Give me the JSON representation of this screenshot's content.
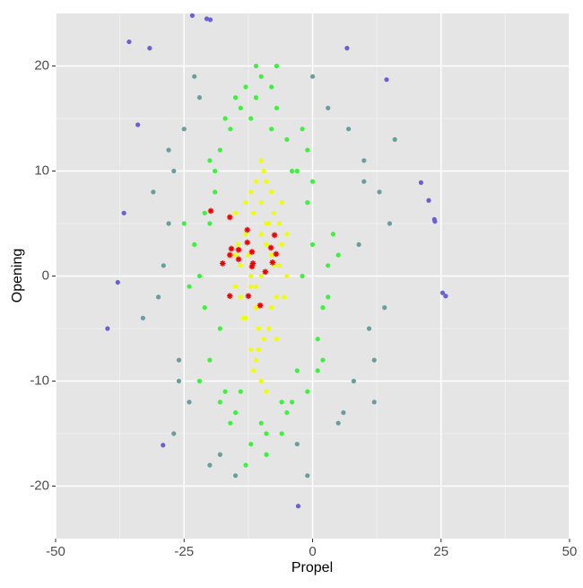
{
  "chart_data": {
    "type": "scatter",
    "xlabel": "Propel",
    "ylabel": "Opening",
    "xlim": [
      -50,
      50
    ],
    "ylim": [
      -25,
      25
    ],
    "xticks": [
      -50,
      -25,
      0,
      25,
      50
    ],
    "yticks": [
      -20,
      -10,
      0,
      10,
      20
    ],
    "xminor": [
      -37.5,
      -12.5,
      12.5,
      37.5
    ],
    "yminor": [
      -15,
      -5,
      5,
      15
    ],
    "grid": true,
    "series": [
      {
        "color": "#6a9e9e",
        "marker": "circle",
        "x": [
          -28,
          -30,
          -27,
          -26,
          9,
          11,
          13,
          8,
          10,
          -29,
          -25,
          12,
          14,
          -24,
          7,
          -31,
          -27,
          15,
          -22,
          5,
          -18,
          -3,
          0,
          -20,
          3,
          -15,
          -1,
          -28,
          10,
          -33,
          16,
          -26,
          12,
          -23,
          6
        ],
        "y": [
          5,
          -2,
          10,
          -8,
          3,
          -5,
          8,
          -10,
          11,
          1,
          14,
          -8,
          -3,
          -12,
          14,
          8,
          -15,
          5,
          17,
          -14,
          -17,
          -16,
          19,
          -18,
          16,
          -19,
          -19,
          12,
          9,
          -4,
          13,
          -10,
          -12,
          19,
          -13
        ]
      },
      {
        "color": "#6b5fd6",
        "marker": "circle",
        "x": [
          -35.7,
          -31.7,
          -39.9,
          -37.9,
          -36.7,
          25.3,
          25.9,
          23.7,
          23.8,
          22.6,
          21.1,
          -29.1,
          -2.8,
          -23.4,
          -20.6,
          -19.9,
          6.7,
          14.4,
          -34
        ],
        "y": [
          22.3,
          21.7,
          -5,
          -0.6,
          6,
          -1.6,
          -1.9,
          5.4,
          5.2,
          7.2,
          8.9,
          -16.1,
          -21.9,
          24.8,
          24.5,
          24.4,
          21.7,
          18.7,
          14.4
        ]
      },
      {
        "color": "#3df23d",
        "marker": "circle",
        "x": [
          -22,
          -20,
          -18,
          -21,
          -19,
          -2,
          0,
          2,
          -1,
          1,
          3,
          -4,
          -16,
          -12,
          -8,
          -14,
          -6,
          -10,
          -18,
          -3,
          -20,
          -23,
          0,
          2,
          -15,
          -5,
          -11,
          -9,
          -13,
          -7,
          -24,
          -22,
          -17,
          4,
          3,
          -1,
          -19,
          -4,
          -21,
          1,
          -12,
          -8,
          -16,
          -6,
          -10,
          -14,
          -2,
          -18,
          -25,
          5,
          -9,
          -11,
          -13,
          -7,
          -15,
          -5,
          -20,
          -1,
          -17,
          -3
        ],
        "y": [
          0,
          5,
          -5,
          -3,
          8,
          0,
          3,
          -3,
          7,
          -6,
          1,
          10,
          14,
          15,
          14,
          -11,
          -12,
          -14,
          12,
          -9,
          -8,
          3,
          9,
          -8,
          -13,
          13,
          17,
          -15,
          18,
          16,
          -1,
          -10,
          -11,
          4,
          -2,
          12,
          10,
          -12,
          6,
          -9,
          -16,
          18,
          -14,
          -15,
          19,
          16,
          14,
          -12,
          5,
          2,
          -17,
          20,
          -18,
          20,
          17,
          -13,
          11,
          -11,
          15,
          10
        ]
      },
      {
        "color": "#eeff00",
        "marker": "circle",
        "x": [
          -10,
          -8,
          -12,
          -6,
          -14,
          -9,
          -11,
          -7,
          -13,
          -5,
          -15,
          -10,
          -8.5,
          -11.5,
          -9.5,
          -6.5,
          -13.5,
          -12,
          -7.5,
          -10.5,
          -14.5,
          -5.5,
          -9,
          -11,
          -8,
          -12.5,
          -6,
          -10,
          -13,
          -7,
          -15,
          -9.5,
          -11.5,
          -8,
          -10.5,
          -12,
          -6.5,
          -14,
          -9,
          -11,
          -7.5,
          -13,
          -10,
          -8.5,
          -12,
          -5,
          -15,
          -10,
          -9,
          -11
        ],
        "y": [
          0,
          2,
          -1,
          3,
          1,
          5,
          -3,
          -2,
          4,
          0,
          -1,
          7,
          -5,
          6,
          -6,
          5,
          -4,
          8,
          1,
          -7,
          3,
          -2,
          9,
          -8,
          -3,
          2,
          7,
          4,
          -4,
          -6,
          6,
          10,
          -9,
          8,
          -5,
          0,
          1,
          -2,
          3,
          -1,
          6,
          7,
          -10,
          5,
          -7,
          4,
          2,
          11,
          -11,
          9
        ]
      },
      {
        "color": "#ee0000",
        "marker": "star",
        "x": [
          -19.8,
          -16.1,
          -12.7,
          -7.4,
          -12.7,
          -8.1,
          -15.8,
          -14.4,
          -11.8,
          -7.1,
          -16.1,
          -14.4,
          -7.8,
          -17.5,
          -11.6,
          -11.8,
          -9.2,
          -16.1,
          -12.5,
          -10.2
        ],
        "y": [
          6.2,
          5.6,
          4.4,
          3.9,
          3.2,
          2.7,
          2.6,
          2.5,
          2.3,
          2.1,
          2,
          1.6,
          1.3,
          1.2,
          1.2,
          0.9,
          0.4,
          -1.9,
          -1.9,
          -2.8
        ]
      }
    ]
  }
}
